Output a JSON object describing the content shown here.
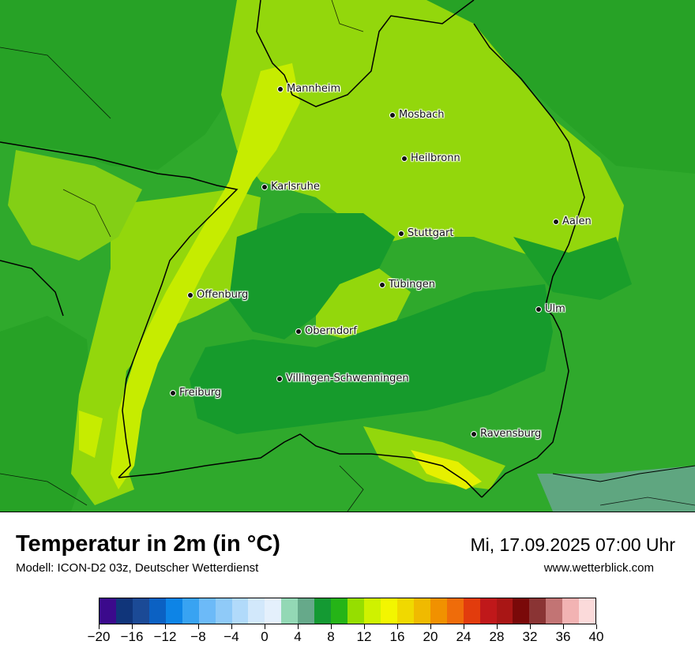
{
  "title": "Temperatur in 2m (in °C)",
  "subtitle": "Modell: ICON-D2 03z, Deutscher Wetterdienst",
  "datetime": "Mi, 17.09.2025 07:00 Uhr",
  "website": "www.wetterblick.com",
  "cities": [
    {
      "name": "Mannheim"
    },
    {
      "name": "Mosbach"
    },
    {
      "name": "Heilbronn"
    },
    {
      "name": "Karlsruhe"
    },
    {
      "name": "Aalen"
    },
    {
      "name": "Stuttgart"
    },
    {
      "name": "Tübingen"
    },
    {
      "name": "Offenburg"
    },
    {
      "name": "Ulm"
    },
    {
      "name": "Oberndorf"
    },
    {
      "name": "Villingen-Schwenningen"
    },
    {
      "name": "Freiburg"
    },
    {
      "name": "Ravensburg"
    }
  ],
  "legend": {
    "colors": [
      "#3b0a8c",
      "#10357a",
      "#1b4a96",
      "#0b61c3",
      "#0d84e6",
      "#38a3f2",
      "#6cbaf8",
      "#8fcaf8",
      "#b1dafa",
      "#d2e8fb",
      "#e4f0fc",
      "#93d8b5",
      "#66a98a",
      "#149a33",
      "#25b417",
      "#96de00",
      "#cff200",
      "#f3f600",
      "#f0d900",
      "#f0ba00",
      "#f19100",
      "#ef6c0a",
      "#e23c0d",
      "#c0181a",
      "#a91615",
      "#7a0909",
      "#8a3434",
      "#c27474",
      "#f2b3b3",
      "#fbdada"
    ],
    "tick_labels": [
      "−20",
      "−16",
      "−12",
      "−8",
      "−4",
      "0",
      "4",
      "8",
      "12",
      "16",
      "20",
      "24",
      "28",
      "32",
      "36",
      "40"
    ],
    "range": [
      -20,
      40
    ]
  }
}
